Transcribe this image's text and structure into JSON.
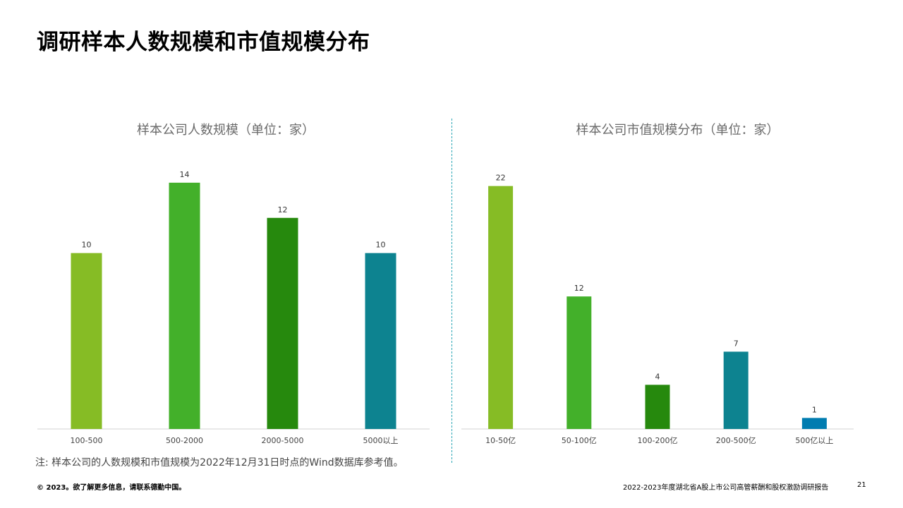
{
  "page": {
    "title": "调研样本人数规模和市值规模分布",
    "footnote": "注: 样本公司的人数规模和市值规模为2022年12月31日时点的Wind数据库参考值。",
    "footer_left": "© 2023。欲了解更多信息，请联系德勤中国。",
    "footer_right": "2022-2023年度湖北省A股上市公司高管薪酬和股权激励调研报告",
    "page_number": "21"
  },
  "chart_data": [
    {
      "type": "bar",
      "title": "样本公司人数规模（单位：家）",
      "categories": [
        "100-500",
        "500-2000",
        "2000-5000",
        "5000以上"
      ],
      "values": [
        10,
        14,
        12,
        10
      ],
      "colors": [
        "#86bc25",
        "#43b02a",
        "#26890d",
        "#0d8390"
      ],
      "ylim": [
        0,
        15
      ],
      "grid": false,
      "legend": "none"
    },
    {
      "type": "bar",
      "title": "样本公司市值规模分布（单位：家）",
      "categories": [
        "10-50亿",
        "50-100亿",
        "100-200亿",
        "200-500亿",
        "500亿以上"
      ],
      "values": [
        22,
        12,
        4,
        7,
        1
      ],
      "colors": [
        "#86bc25",
        "#43b02a",
        "#26890d",
        "#0d8390",
        "#007cb0"
      ],
      "ylim": [
        0,
        23
      ],
      "grid": false,
      "legend": "none"
    }
  ]
}
